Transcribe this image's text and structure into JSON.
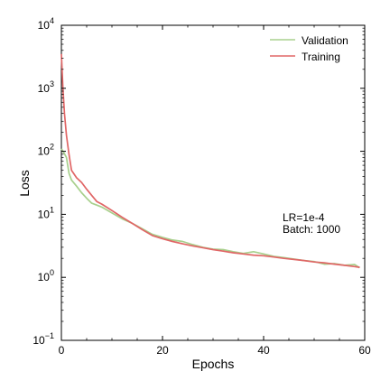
{
  "chart_data": {
    "type": "line",
    "title": "",
    "xlabel": "Epochs",
    "ylabel": "Loss",
    "xlim": [
      0,
      60
    ],
    "ylim": [
      0.1,
      10000
    ],
    "yscale": "log",
    "grid": false,
    "legend_position": "top-right",
    "x_ticks": [
      0,
      20,
      40,
      60
    ],
    "y_ticks": [
      {
        "value": 0.1,
        "base": "10",
        "exp": "−1"
      },
      {
        "value": 1,
        "base": "10",
        "exp": "0"
      },
      {
        "value": 10,
        "base": "10",
        "exp": "1"
      },
      {
        "value": 100,
        "base": "10",
        "exp": "2"
      },
      {
        "value": 1000,
        "base": "10",
        "exp": "3"
      },
      {
        "value": 10000,
        "base": "10",
        "exp": "4"
      }
    ],
    "annotation": [
      "LR=1e-4",
      "Batch: 1000"
    ],
    "series": [
      {
        "name": "Validation",
        "color": "#a8d08d",
        "x": [
          0,
          0.5,
          1,
          1.5,
          2,
          3,
          4,
          5,
          6,
          7,
          8,
          10,
          12,
          14,
          16,
          18,
          20,
          22,
          24,
          26,
          28,
          30,
          32,
          34,
          36,
          38,
          40,
          42,
          44,
          46,
          48,
          50,
          52,
          54,
          56,
          58,
          59
        ],
        "y": [
          110,
          95,
          80,
          45,
          35,
          28,
          22,
          18,
          15,
          14,
          13,
          10.5,
          8.5,
          7.2,
          5.9,
          4.8,
          4.3,
          3.9,
          3.7,
          3.3,
          3.0,
          2.8,
          2.75,
          2.55,
          2.4,
          2.55,
          2.35,
          2.15,
          2.05,
          1.95,
          1.85,
          1.78,
          1.62,
          1.65,
          1.55,
          1.6,
          1.42
        ]
      },
      {
        "name": "Training",
        "color": "#e06666",
        "x": [
          0,
          0.3,
          0.6,
          1,
          1.5,
          2,
          3,
          4,
          5,
          6,
          7,
          8,
          10,
          12,
          14,
          16,
          18,
          20,
          22,
          24,
          26,
          28,
          30,
          32,
          34,
          36,
          38,
          40,
          42,
          44,
          46,
          48,
          50,
          52,
          54,
          56,
          58,
          59
        ],
        "y": [
          3500,
          1000,
          400,
          180,
          90,
          50,
          38,
          32,
          25,
          20,
          16,
          14.5,
          11.5,
          9.0,
          7.2,
          5.7,
          4.6,
          4.1,
          3.7,
          3.4,
          3.15,
          2.95,
          2.75,
          2.6,
          2.45,
          2.35,
          2.25,
          2.2,
          2.1,
          2.0,
          1.92,
          1.85,
          1.75,
          1.7,
          1.62,
          1.55,
          1.48,
          1.44
        ]
      }
    ]
  }
}
